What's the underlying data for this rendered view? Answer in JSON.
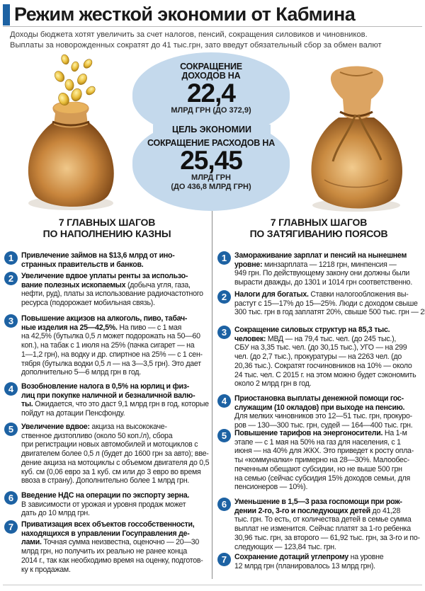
{
  "title": "Режим жесткой экономии от Кабмина",
  "lead": [
    "Доходы бюджета хотят увеличить за счет налогов, пенсий, сокращения силовиков и чиновников.",
    "Выплаты за новорожденных сократят до 41 тыс.грн, зато введут обязательный сбор за обмен валют"
  ],
  "income": {
    "caption": [
      "СОКРАЩЕНИЕ",
      "ДОХОДОВ НА"
    ],
    "value": "22,4",
    "unit": "МЛРД ГРН (ДО 372,9)"
  },
  "goal_label": "ЦЕЛЬ ЭКОНОМИИ",
  "expense": {
    "caption": "СОКРАЩЕНИЕ РАСХОДОВ НА",
    "value": "25,45",
    "unit": [
      "МЛРД ГРН",
      "(ДО 436,8 МЛРД ГРН)"
    ]
  },
  "left_column": {
    "heading": [
      "7 ГЛАВНЫХ ШАГОВ",
      "ПО НАПОЛНЕНИЮ КАЗНЫ"
    ],
    "items": [
      {
        "num": "1",
        "lines": [
          {
            "b": "Привлечение займов на $13,6 млрд от ино-",
            "t": ""
          },
          {
            "b": "странных правительств и банков.",
            "t": ""
          }
        ]
      },
      {
        "num": "2",
        "lines": [
          {
            "b": "Увеличение вдвое уплаты ренты за использо-",
            "t": ""
          },
          {
            "b": "вание полезных ископаемых",
            "t": " (добыча угля, газа,"
          },
          {
            "b": "",
            "t": "нефти, руд), платы за использование радиочастотного"
          },
          {
            "b": "",
            "t": "ресурса (подорожает мобильная связь)."
          }
        ]
      },
      {
        "num": "3",
        "lines": [
          {
            "b": "Повышение акцизов на алкоголь, пиво, табач-",
            "t": ""
          },
          {
            "b": "ные изделия на 25—42,5%.",
            "t": " На пиво — с 1 мая"
          },
          {
            "b": "",
            "t": "на 42,5% (бутылка 0,5 л может подорожать на 50—60"
          },
          {
            "b": "",
            "t": "коп.), на табак с 1 июля на 25% (пачка сигарет — на"
          },
          {
            "b": "",
            "t": "1—1,2 грн), на водку и др. спиртное на 25% — с 1 сен-"
          },
          {
            "b": "",
            "t": "тября (бутылка водки 0,5 л — на 3—3,5 грн). Это дает"
          },
          {
            "b": "",
            "t": "дополнительно 5—6 млрд грн в год."
          }
        ]
      },
      {
        "num": "4",
        "lines": [
          {
            "b": "Возобновление налога в 0,5% на юрлиц и физ-",
            "t": ""
          },
          {
            "b": "лиц при покупке наличной и безналичной валю-",
            "t": ""
          },
          {
            "b": "ты.",
            "t": " Ожидается, что это даст 9,1 млрд грн в год, которые"
          },
          {
            "b": "",
            "t": "пойдут на дотации Пенсфонду."
          }
        ]
      },
      {
        "num": "5",
        "lines": [
          {
            "b": "Увеличение вдвое:",
            "t": " акциза на высококаче-"
          },
          {
            "b": "",
            "t": "ственное дизтопливо (около 50 коп./л), сбора"
          },
          {
            "b": "",
            "t": "при регистрации новых автомобилей и мотоциклов с"
          },
          {
            "b": "",
            "t": "двигателем более 0,5 л (будет до 1600 грн за авто); вве-"
          },
          {
            "b": "",
            "t": "дение акциза на мотоциклы с объемом двигателя до 0,5"
          },
          {
            "b": "",
            "t": "куб. см (0,06 евро за 1 куб. см или до 3 евро во время"
          },
          {
            "b": "",
            "t": "ввоза в страну). Дополнительно более 1 млрд грн."
          }
        ]
      },
      {
        "num": "6",
        "lines": [
          {
            "b": "Введение НДС на операции по экспорту зерна.",
            "t": ""
          },
          {
            "b": "",
            "t": "В зависимости от урожая и уровня продаж может"
          },
          {
            "b": "",
            "t": "дать до 10 млрд грн."
          }
        ]
      },
      {
        "num": "7",
        "lines": [
          {
            "b": "Приватизация всех объектов госсобственности,",
            "t": ""
          },
          {
            "b": "находящихся в управлении Госуправления де-",
            "t": ""
          },
          {
            "b": "лами.",
            "t": " Точная сумма неизвестна, оценочно — 20—30"
          },
          {
            "b": "",
            "t": "млрд грн, но получить их реально не ранее конца"
          },
          {
            "b": "",
            "t": "2014 г., так как необходимо время на оценку, подготов-"
          },
          {
            "b": "",
            "t": "ку к продажам."
          }
        ]
      }
    ]
  },
  "right_column": {
    "heading": [
      "7 ГЛАВНЫХ ШАГОВ",
      "ПО ЗАТЯГИВАНИЮ ПОЯСОВ"
    ],
    "items": [
      {
        "num": "1",
        "lines": [
          {
            "b": "Замораживание зарплат и пенсий на нынешнем",
            "t": ""
          },
          {
            "b": "уровне:",
            "t": " минзарплата — 1218 грн, минпенсия —"
          },
          {
            "b": "",
            "t": "949 грн. По действующему закону они должны были"
          },
          {
            "b": "",
            "t": "вырасти дважды, до 1301 и 1014 грн соответственно."
          }
        ]
      },
      {
        "num": "2",
        "lines": [
          {
            "b": "Налоги для богатых.",
            "t": " Ставки налогообложения вы-"
          },
          {
            "b": "",
            "t": "растут с 15—17% до 15—25%. Люди с доходом свыше"
          },
          {
            "b": "",
            "t": "300 тыс. грн в год заплатят 20%, свыше 500 тыс. грн — 25%."
          }
        ]
      },
      {
        "num": "3",
        "lines": [
          {
            "b": "Сокращение силовых структур на 85,3 тыс.",
            "t": ""
          },
          {
            "b": "человек:",
            "t": " МВД — на 79,4 тыс. чел. (до 245 тыс.),"
          },
          {
            "b": "",
            "t": "СБУ на 3,35 тыс. чел. (до 30,15 тыс.), УГО — на 299"
          },
          {
            "b": "",
            "t": "чел. (до 2,7 тыс.), прокуратуры — на 2263 чел. (до"
          },
          {
            "b": "",
            "t": "20,36 тыс.). Сократят госчиновников на 10% — около"
          },
          {
            "b": "",
            "t": "24 тыс. чел. С 2015 г. на этом можно будет сэкономить"
          },
          {
            "b": "",
            "t": "около 2 млрд грн в год."
          }
        ]
      },
      {
        "num": "4",
        "lines": [
          {
            "b": "Приостановка выплаты денежной помощи гос-",
            "t": ""
          },
          {
            "b": "служащим (10 окладов) при выходе на пенсию.",
            "t": ""
          },
          {
            "b": "",
            "t": "Для мелких чиновников это 12—51 тыс. грн, прокуро-"
          },
          {
            "b": "",
            "t": "ров — 130—300 тыс. грн, судей — 164—400 тыс. грн."
          }
        ]
      },
      {
        "num": "5",
        "lines": [
          {
            "b": "Повышение тарифов на энергоносители.",
            "t": " На 1-м"
          },
          {
            "b": "",
            "t": "этапе — с 1 мая на 50% на газ для населения, с 1"
          },
          {
            "b": "",
            "t": "июня — на 40% для ЖКХ. Это приведет к росту опла-"
          },
          {
            "b": "",
            "t": "ты «коммуналки» примерно на 28—30%. Малообес-"
          },
          {
            "b": "",
            "t": "печенным обещают субсидии, но не выше 500 грн"
          },
          {
            "b": "",
            "t": "на семью (сейчас субсидия 15% доходов семьи, для"
          },
          {
            "b": "",
            "t": "пенсионеров — 10%)."
          }
        ]
      },
      {
        "num": "6",
        "lines": [
          {
            "b": "Уменьшение в 1,5—3 раза госпомощи при рож-",
            "t": ""
          },
          {
            "b": "дении 2-го, 3-го и последующих детей",
            "t": " до 41,28"
          },
          {
            "b": "",
            "t": "тыс. грн. То есть, от количества детей в семье сумма"
          },
          {
            "b": "",
            "t": "выплат не изменится. Сейчас платят за 1-го ребенка"
          },
          {
            "b": "",
            "t": "30,96 тыс. грн, за второго — 61,92 тыс. грн, за 3-го и по-"
          },
          {
            "b": "",
            "t": "следующих — 123,84 тыс. грн."
          }
        ]
      },
      {
        "num": "7",
        "lines": [
          {
            "b": "Сохранение дотаций углепрому",
            "t": " на уровне"
          },
          {
            "b": "",
            "t": "12 млрд грн (планировалось 13 млрд грн)."
          }
        ]
      }
    ]
  }
}
